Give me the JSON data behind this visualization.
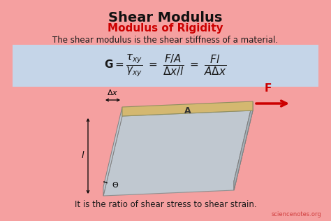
{
  "title": "Shear Modulus",
  "subtitle": "Modulus of Rigidity",
  "description": "The shear modulus is the shear stiffness of a material.",
  "bottom_text": "It is the ratio of shear stress to shear strain.",
  "watermark": "sciencenotes.org",
  "bg_color": "#f5a0a0",
  "formula_box_color": "#c5d5e8",
  "title_color": "#111111",
  "subtitle_color": "#cc0000",
  "text_color": "#1a1a1a",
  "arrow_color": "#cc0000",
  "block_top_color": "#d4b870",
  "block_left_color": "#c0c8d0",
  "block_right_color": "#a8b4bc"
}
